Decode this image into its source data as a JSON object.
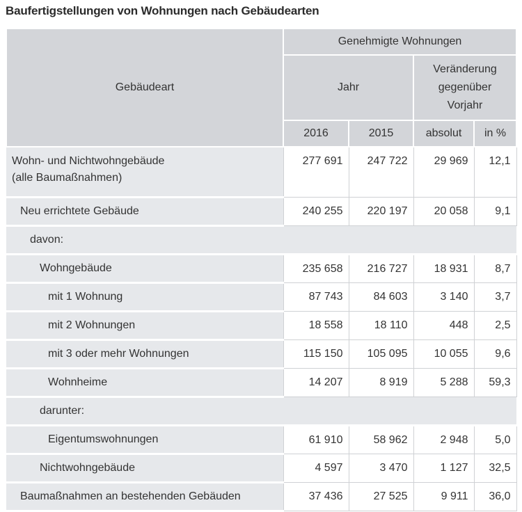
{
  "title": "Baufertigstellungen von Wohnungen nach Gebäudearten",
  "header": {
    "row_label": "Gebäudeart",
    "group": "Genehmigte Wohnungen",
    "jahr": "Jahr",
    "change": "Veränderung gegenüber Vorjahr",
    "cols": [
      "2016",
      "2015",
      "absolut",
      "in %"
    ]
  },
  "rows": [
    {
      "label": "Wohn- und Nichtwohngebäude",
      "label2": "(alle Baumaßnahmen)",
      "level": 0,
      "values": [
        "277 691",
        "247 722",
        "29 969",
        "12,1"
      ]
    },
    {
      "label": "Neu errichtete Gebäude",
      "level": 1,
      "values": [
        "240 255",
        "220 197",
        "20 058",
        "9,1"
      ]
    },
    {
      "label": "davon:",
      "level": 2,
      "values": []
    },
    {
      "label": "Wohngebäude",
      "level": 3,
      "values": [
        "235 658",
        "216 727",
        "18 931",
        "8,7"
      ]
    },
    {
      "label": "mit 1 Wohnung",
      "level": 4,
      "values": [
        "87 743",
        "84 603",
        "3 140",
        "3,7"
      ]
    },
    {
      "label": "mit 2 Wohnungen",
      "level": 4,
      "values": [
        "18 558",
        "18 110",
        "448",
        "2,5"
      ]
    },
    {
      "label": "mit 3 oder mehr Wohnungen",
      "level": 4,
      "values": [
        "115 150",
        "105 095",
        "10 055",
        "9,6"
      ]
    },
    {
      "label": "Wohnheime",
      "level": 4,
      "values": [
        "14 207",
        "8 919",
        "5 288",
        "59,3"
      ]
    },
    {
      "label": "darunter:",
      "level": 3,
      "values": []
    },
    {
      "label": "Eigentumswohnungen",
      "level": 4,
      "values": [
        "61 910",
        "58 962",
        "2 948",
        "5,0"
      ]
    },
    {
      "label": "Nichtwohngebäude",
      "level": 3,
      "values": [
        "4 597",
        "3 470",
        "1 127",
        "32,5"
      ]
    },
    {
      "label": "Baumaßnahmen an bestehenden Gebäuden",
      "level": 1,
      "values": [
        "37 436",
        "27 525",
        "9 911",
        "36,0"
      ]
    }
  ]
}
